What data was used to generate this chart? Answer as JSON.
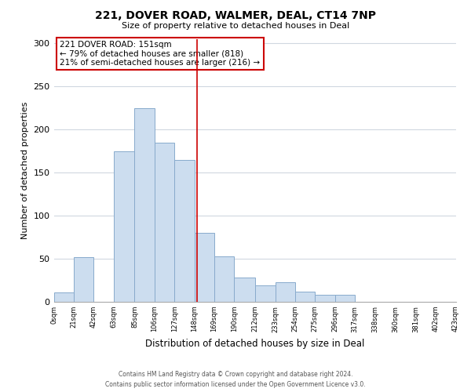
{
  "title1": "221, DOVER ROAD, WALMER, DEAL, CT14 7NP",
  "title2": "Size of property relative to detached houses in Deal",
  "xlabel": "Distribution of detached houses by size in Deal",
  "ylabel": "Number of detached properties",
  "bar_edges": [
    0,
    21,
    42,
    63,
    85,
    106,
    127,
    148,
    169,
    190,
    212,
    233,
    254,
    275,
    296,
    317,
    338,
    360,
    381,
    402,
    423
  ],
  "bar_heights": [
    11,
    52,
    0,
    175,
    225,
    185,
    165,
    80,
    53,
    28,
    19,
    23,
    12,
    8,
    8,
    0,
    0,
    0,
    0,
    0
  ],
  "bar_color": "#ccddef",
  "bar_edgecolor": "#88aacc",
  "property_line_x": 151,
  "property_line_color": "#cc0000",
  "ann_line1": "221 DOVER ROAD: 151sqm",
  "ann_line2": "← 79% of detached houses are smaller (818)",
  "ann_line3": "21% of semi-detached houses are larger (216) →",
  "ylim": [
    0,
    305
  ],
  "yticks": [
    0,
    50,
    100,
    150,
    200,
    250,
    300
  ],
  "tick_labels": [
    "0sqm",
    "21sqm",
    "42sqm",
    "63sqm",
    "85sqm",
    "106sqm",
    "127sqm",
    "148sqm",
    "169sqm",
    "190sqm",
    "212sqm",
    "233sqm",
    "254sqm",
    "275sqm",
    "296sqm",
    "317sqm",
    "338sqm",
    "360sqm",
    "381sqm",
    "402sqm",
    "423sqm"
  ],
  "footer_line1": "Contains HM Land Registry data © Crown copyright and database right 2024.",
  "footer_line2": "Contains public sector information licensed under the Open Government Licence v3.0.",
  "background_color": "#ffffff",
  "grid_color": "#d0d8e0"
}
